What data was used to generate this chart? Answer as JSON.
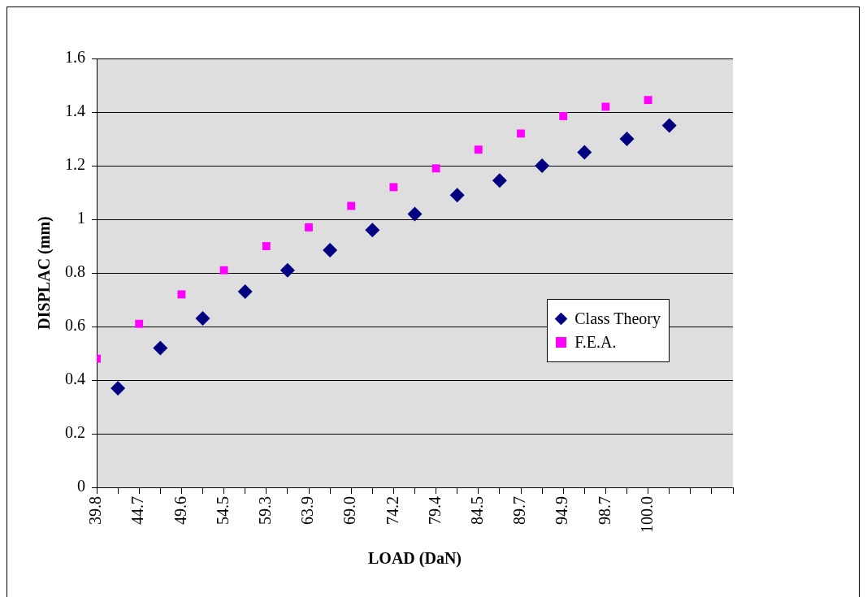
{
  "chart_data": {
    "type": "scatter",
    "xlabel": "LOAD (DaN)",
    "ylabel": "DISPLAC (mm)",
    "categories": [
      "39.8",
      null,
      "44.7",
      null,
      "49.6",
      null,
      "54.5",
      null,
      "59.3",
      null,
      "63.9",
      null,
      "69.0",
      null,
      "74.2",
      null,
      "79.4",
      null,
      "84.5",
      null,
      "89.7",
      null,
      "94.9",
      null,
      "98.7",
      null,
      "100.0",
      null,
      null,
      null,
      null
    ],
    "series": [
      {
        "name": "Class Theory",
        "color": "#000080",
        "marker": "diamond",
        "values": [
          null,
          0.37,
          null,
          0.52,
          null,
          0.63,
          null,
          0.73,
          null,
          0.81,
          null,
          0.885,
          null,
          0.96,
          null,
          1.02,
          null,
          1.09,
          null,
          1.145,
          null,
          1.2,
          null,
          1.25,
          null,
          1.3,
          null,
          1.35,
          null,
          null,
          null
        ]
      },
      {
        "name": "F.E.A.",
        "color": "#ff00ff",
        "marker": "square",
        "values": [
          0.48,
          null,
          0.61,
          null,
          0.72,
          null,
          0.81,
          null,
          0.9,
          null,
          0.97,
          null,
          1.05,
          null,
          1.12,
          null,
          1.19,
          null,
          1.26,
          null,
          1.32,
          null,
          1.385,
          null,
          1.42,
          null,
          1.445,
          null,
          null,
          null,
          null
        ]
      }
    ],
    "ylim": [
      0,
      1.6
    ],
    "yticks": [
      0,
      0.2,
      0.4,
      0.6,
      0.8,
      1,
      1.2,
      1.4,
      1.6
    ],
    "grid": "y",
    "legend": "right"
  }
}
